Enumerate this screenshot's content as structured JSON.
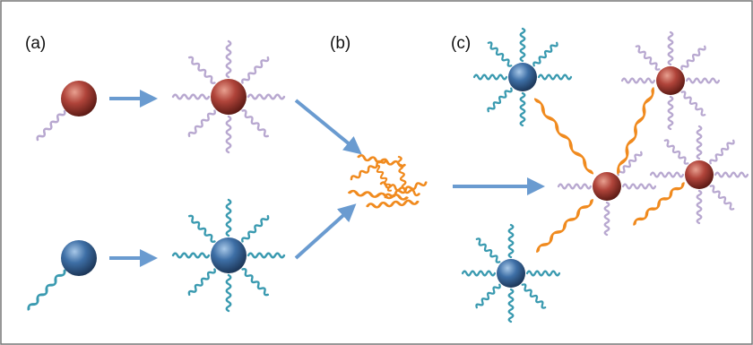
{
  "panels": {
    "a": "(a)",
    "b": "(b)",
    "c": "(c)"
  }
}
